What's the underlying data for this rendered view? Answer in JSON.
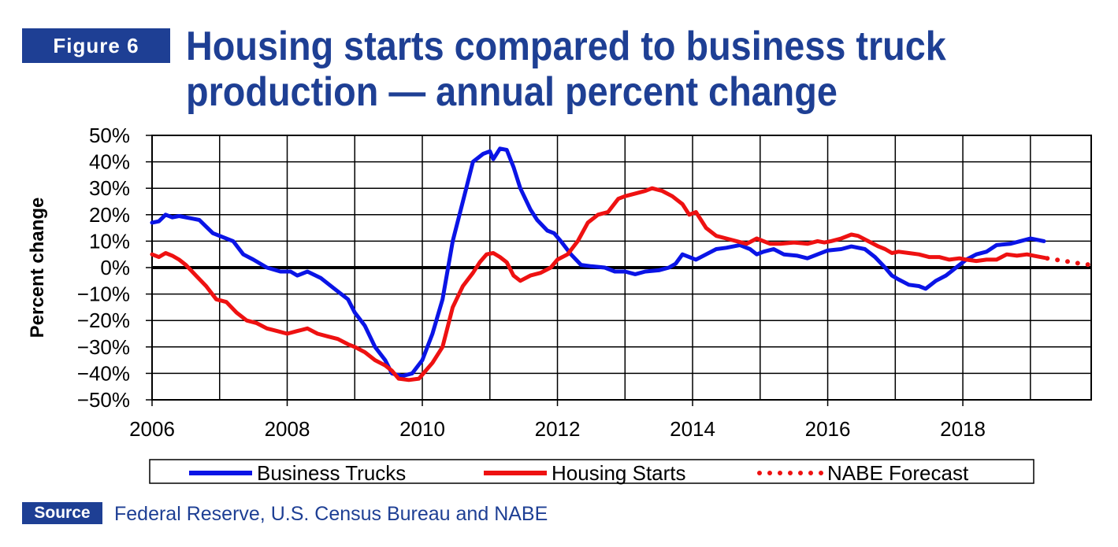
{
  "header": {
    "badge": "Figure 6",
    "title_line1": "Housing starts compared to business truck",
    "title_line2": "production — annual percent change"
  },
  "source": {
    "badge": "Source",
    "text": "Federal Reserve, U.S. Census Bureau and NABE"
  },
  "colors": {
    "brand": "#1e3f94",
    "trucks": "#0a14e6",
    "housing": "#ee1111",
    "forecast": "#ee1111",
    "zero_line": "#000000"
  },
  "chart_data": {
    "type": "line",
    "ylabel": "Percent change",
    "xlabel": "",
    "xlim": [
      2006,
      2019.9
    ],
    "ylim": [
      -50,
      50
    ],
    "x_ticks": [
      2006,
      2008,
      2010,
      2012,
      2014,
      2016,
      2018
    ],
    "x_tick_labels": [
      "2006",
      "2008",
      "2010",
      "2012",
      "2014",
      "2016",
      "2018"
    ],
    "y_ticks": [
      50,
      40,
      30,
      20,
      10,
      0,
      -10,
      -20,
      -30,
      -40,
      -50
    ],
    "y_tick_labels": [
      "50%",
      "40%",
      "30%",
      "20%",
      "10%",
      "0%",
      "−10%",
      "−20%",
      "−30%",
      "−40%",
      "−50%"
    ],
    "grid": true,
    "legend_position": "bottom",
    "series": [
      {
        "name": "Business Trucks",
        "style": "solid",
        "points": [
          [
            2006.0,
            17
          ],
          [
            2006.1,
            17.5
          ],
          [
            2006.2,
            20
          ],
          [
            2006.3,
            19
          ],
          [
            2006.4,
            19.5
          ],
          [
            2006.5,
            19
          ],
          [
            2006.6,
            18.5
          ],
          [
            2006.7,
            18
          ],
          [
            2006.8,
            15.5
          ],
          [
            2006.9,
            13
          ],
          [
            2007.0,
            12
          ],
          [
            2007.2,
            10
          ],
          [
            2007.35,
            5
          ],
          [
            2007.5,
            3
          ],
          [
            2007.7,
            0
          ],
          [
            2007.9,
            -1.5
          ],
          [
            2008.05,
            -1.5
          ],
          [
            2008.15,
            -3
          ],
          [
            2008.3,
            -1.5
          ],
          [
            2008.5,
            -4
          ],
          [
            2008.7,
            -8
          ],
          [
            2008.9,
            -12
          ],
          [
            2009.0,
            -17
          ],
          [
            2009.15,
            -22
          ],
          [
            2009.3,
            -30
          ],
          [
            2009.45,
            -35
          ],
          [
            2009.55,
            -40
          ],
          [
            2009.7,
            -41
          ],
          [
            2009.85,
            -40
          ],
          [
            2010.0,
            -35
          ],
          [
            2010.15,
            -25
          ],
          [
            2010.3,
            -12
          ],
          [
            2010.45,
            10
          ],
          [
            2010.6,
            25
          ],
          [
            2010.75,
            40
          ],
          [
            2010.9,
            43
          ],
          [
            2011.0,
            44
          ],
          [
            2011.05,
            41
          ],
          [
            2011.15,
            45
          ],
          [
            2011.25,
            44.5
          ],
          [
            2011.35,
            38
          ],
          [
            2011.45,
            30
          ],
          [
            2011.6,
            22
          ],
          [
            2011.7,
            18
          ],
          [
            2011.85,
            14
          ],
          [
            2011.95,
            13
          ],
          [
            2012.05,
            10
          ],
          [
            2012.2,
            5
          ],
          [
            2012.35,
            1
          ],
          [
            2012.5,
            0.5
          ],
          [
            2012.7,
            0
          ],
          [
            2012.85,
            -1.5
          ],
          [
            2013.0,
            -1.5
          ],
          [
            2013.15,
            -2.5
          ],
          [
            2013.3,
            -1.5
          ],
          [
            2013.5,
            -1
          ],
          [
            2013.65,
            0
          ],
          [
            2013.75,
            1.5
          ],
          [
            2013.85,
            5
          ],
          [
            2013.95,
            4
          ],
          [
            2014.05,
            3
          ],
          [
            2014.2,
            5
          ],
          [
            2014.35,
            7
          ],
          [
            2014.5,
            7.5
          ],
          [
            2014.7,
            8.5
          ],
          [
            2014.85,
            7
          ],
          [
            2014.95,
            5
          ],
          [
            2015.05,
            6
          ],
          [
            2015.2,
            7
          ],
          [
            2015.35,
            5
          ],
          [
            2015.55,
            4.5
          ],
          [
            2015.7,
            3.5
          ],
          [
            2015.85,
            5
          ],
          [
            2016.0,
            6.5
          ],
          [
            2016.2,
            7
          ],
          [
            2016.35,
            8
          ],
          [
            2016.55,
            7
          ],
          [
            2016.7,
            4
          ],
          [
            2016.85,
            0
          ],
          [
            2016.95,
            -3
          ],
          [
            2017.05,
            -4.5
          ],
          [
            2017.2,
            -6.5
          ],
          [
            2017.35,
            -7
          ],
          [
            2017.45,
            -8
          ],
          [
            2017.6,
            -5
          ],
          [
            2017.75,
            -3
          ],
          [
            2017.9,
            0
          ],
          [
            2018.05,
            3
          ],
          [
            2018.2,
            5
          ],
          [
            2018.35,
            6
          ],
          [
            2018.5,
            8.5
          ],
          [
            2018.7,
            9
          ],
          [
            2018.85,
            10
          ],
          [
            2019.0,
            11
          ],
          [
            2019.1,
            10.5
          ],
          [
            2019.2,
            10
          ]
        ]
      },
      {
        "name": "Housing Starts",
        "style": "solid",
        "points": [
          [
            2006.0,
            5
          ],
          [
            2006.1,
            4
          ],
          [
            2006.2,
            5.5
          ],
          [
            2006.3,
            4.5
          ],
          [
            2006.4,
            3
          ],
          [
            2006.5,
            1
          ],
          [
            2006.65,
            -3
          ],
          [
            2006.8,
            -7
          ],
          [
            2006.95,
            -12
          ],
          [
            2007.1,
            -13
          ],
          [
            2007.25,
            -17
          ],
          [
            2007.4,
            -20
          ],
          [
            2007.55,
            -21
          ],
          [
            2007.7,
            -23
          ],
          [
            2007.85,
            -24
          ],
          [
            2008.0,
            -25
          ],
          [
            2008.15,
            -24
          ],
          [
            2008.3,
            -23
          ],
          [
            2008.45,
            -25
          ],
          [
            2008.6,
            -26
          ],
          [
            2008.75,
            -27
          ],
          [
            2008.9,
            -29
          ],
          [
            2009.0,
            -30
          ],
          [
            2009.15,
            -32
          ],
          [
            2009.3,
            -35
          ],
          [
            2009.45,
            -37
          ],
          [
            2009.55,
            -39
          ],
          [
            2009.65,
            -42
          ],
          [
            2009.8,
            -42.5
          ],
          [
            2009.95,
            -42
          ],
          [
            2010.05,
            -39
          ],
          [
            2010.15,
            -36
          ],
          [
            2010.3,
            -30
          ],
          [
            2010.45,
            -15
          ],
          [
            2010.6,
            -7
          ],
          [
            2010.75,
            -2
          ],
          [
            2010.85,
            2
          ],
          [
            2010.95,
            5
          ],
          [
            2011.05,
            5.5
          ],
          [
            2011.15,
            4
          ],
          [
            2011.25,
            2
          ],
          [
            2011.35,
            -3
          ],
          [
            2011.45,
            -5
          ],
          [
            2011.6,
            -3
          ],
          [
            2011.75,
            -2
          ],
          [
            2011.9,
            0
          ],
          [
            2012.0,
            3
          ],
          [
            2012.15,
            5
          ],
          [
            2012.3,
            10
          ],
          [
            2012.45,
            17
          ],
          [
            2012.6,
            20
          ],
          [
            2012.75,
            21
          ],
          [
            2012.9,
            26
          ],
          [
            2013.0,
            27
          ],
          [
            2013.15,
            28
          ],
          [
            2013.3,
            29
          ],
          [
            2013.4,
            30
          ],
          [
            2013.55,
            29
          ],
          [
            2013.7,
            27
          ],
          [
            2013.85,
            24
          ],
          [
            2013.95,
            20
          ],
          [
            2014.05,
            21
          ],
          [
            2014.2,
            15
          ],
          [
            2014.35,
            12
          ],
          [
            2014.5,
            11
          ],
          [
            2014.65,
            10
          ],
          [
            2014.8,
            9
          ],
          [
            2014.95,
            11
          ],
          [
            2015.05,
            10
          ],
          [
            2015.15,
            9
          ],
          [
            2015.3,
            9
          ],
          [
            2015.5,
            9.5
          ],
          [
            2015.7,
            9
          ],
          [
            2015.85,
            10
          ],
          [
            2015.95,
            9.5
          ],
          [
            2016.05,
            10
          ],
          [
            2016.2,
            11
          ],
          [
            2016.35,
            12.5
          ],
          [
            2016.45,
            12
          ],
          [
            2016.6,
            10
          ],
          [
            2016.75,
            8
          ],
          [
            2016.85,
            7
          ],
          [
            2016.95,
            5.5
          ],
          [
            2017.05,
            6
          ],
          [
            2017.2,
            5.5
          ],
          [
            2017.35,
            5
          ],
          [
            2017.5,
            4
          ],
          [
            2017.65,
            4
          ],
          [
            2017.8,
            3
          ],
          [
            2017.95,
            3.5
          ],
          [
            2018.05,
            3
          ],
          [
            2018.2,
            2.5
          ],
          [
            2018.35,
            3
          ],
          [
            2018.5,
            3
          ],
          [
            2018.65,
            5
          ],
          [
            2018.8,
            4.5
          ],
          [
            2018.95,
            5
          ],
          [
            2019.05,
            4.5
          ],
          [
            2019.15,
            4
          ],
          [
            2019.25,
            3.5
          ]
        ]
      },
      {
        "name": "NABE Forecast",
        "style": "dotted",
        "points": [
          [
            2019.25,
            3.5
          ],
          [
            2019.5,
            2.5
          ],
          [
            2019.75,
            1.5
          ],
          [
            2019.9,
            1
          ]
        ]
      }
    ]
  }
}
